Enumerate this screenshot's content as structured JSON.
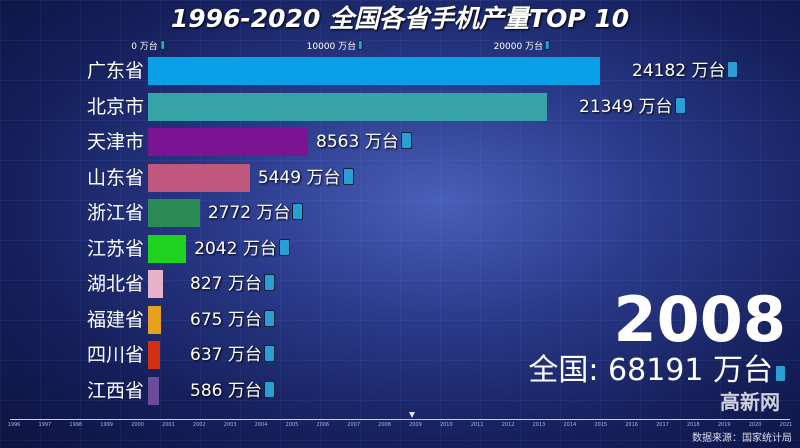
{
  "chart_data": {
    "type": "bar",
    "orientation": "horizontal",
    "title": "1996-2020 全国各省手机产量TOP 10",
    "unit": "万台",
    "axis_ticks": [
      "0 万台",
      "10000 万台",
      "20000 万台"
    ],
    "xlim": [
      0,
      25000
    ],
    "categories": [
      "广东省",
      "北京市",
      "天津市",
      "山东省",
      "浙江省",
      "江苏省",
      "湖北省",
      "福建省",
      "四川省",
      "江西省"
    ],
    "values": [
      24182,
      21349,
      8563,
      5449,
      2772,
      2042,
      827,
      675,
      637,
      586
    ],
    "colors": [
      "#0aa0e8",
      "#36a3a6",
      "#7a1492",
      "#c0587e",
      "#2a8a54",
      "#1fd21f",
      "#e6b3c9",
      "#e6a01e",
      "#d2300f",
      "#6a4c9c"
    ],
    "year": "2008",
    "total_label": "全国: 68191 万台",
    "timeline_years": [
      "1996",
      "1997",
      "1998",
      "1999",
      "2000",
      "2001",
      "2002",
      "2003",
      "2004",
      "2005",
      "2006",
      "2007",
      "2008",
      "2009",
      "2010",
      "2011",
      "2012",
      "2013",
      "2014",
      "2015",
      "2016",
      "2017",
      "2018",
      "2019",
      "2020",
      "2021"
    ],
    "timeline_position": 2008.9
  },
  "source": "数据来源：国家统计局",
  "watermark": "高新网",
  "icon": "mobile-phone-icon"
}
